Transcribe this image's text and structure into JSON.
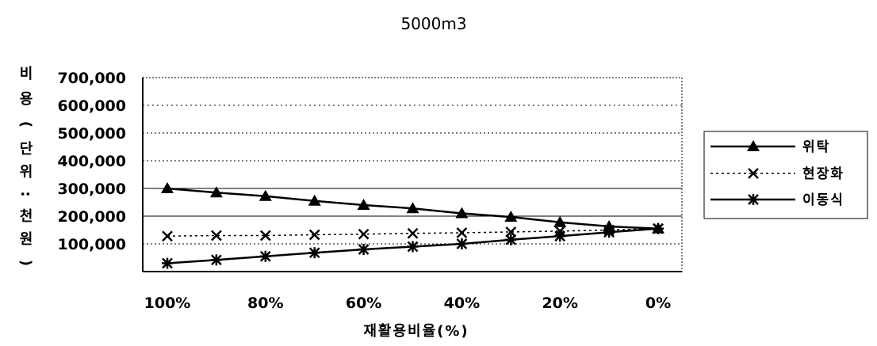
{
  "chart_data": {
    "type": "line",
    "title": "5000m3",
    "xlabel": "재활용비율(%)",
    "ylabel_chars": [
      "비",
      "용",
      "(",
      "단",
      "위",
      ":",
      "천",
      "원",
      ")"
    ],
    "categories": [
      "100%",
      "90%",
      "80%",
      "70%",
      "60%",
      "50%",
      "40%",
      "30%",
      "20%",
      "10%",
      "0%"
    ],
    "x_tick_labels": [
      "100%",
      "80%",
      "60%",
      "40%",
      "20%",
      "0%"
    ],
    "y_tick_labels": [
      "700,000",
      "600,000",
      "500,000",
      "400,000",
      "300,000",
      "200,000",
      "100,000"
    ],
    "ylim": [
      0,
      700000
    ],
    "legend_position": "right",
    "series": [
      {
        "name": "위탁",
        "marker": "triangle",
        "line": "solid",
        "values": [
          300000,
          285000,
          272000,
          255000,
          240000,
          228000,
          210000,
          197000,
          178000,
          163000,
          155000
        ]
      },
      {
        "name": "현장화",
        "marker": "x",
        "line": "dotted",
        "values": [
          128000,
          130000,
          130000,
          133000,
          135000,
          138000,
          140000,
          143000,
          146000,
          150000,
          155000
        ]
      },
      {
        "name": "이동식",
        "marker": "star",
        "line": "solid",
        "values": [
          30000,
          42000,
          55000,
          68000,
          80000,
          90000,
          100000,
          115000,
          128000,
          142000,
          155000
        ]
      }
    ]
  }
}
